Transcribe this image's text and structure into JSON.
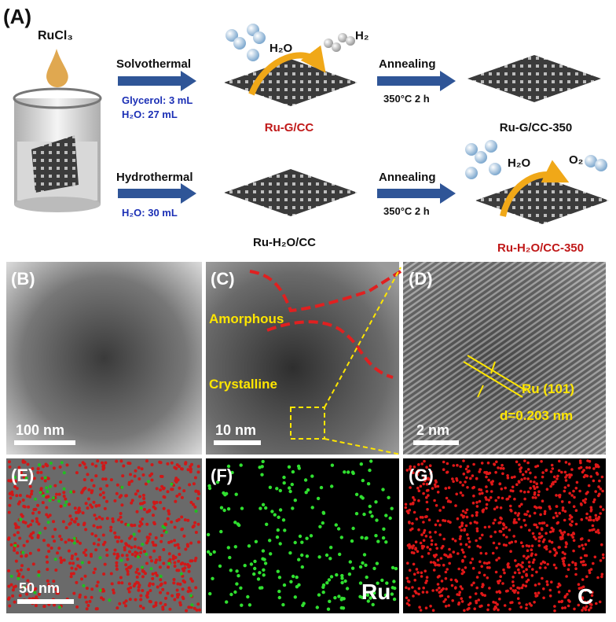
{
  "panel_a": {
    "label": "(A)",
    "precursor": "RuCl₃",
    "route_1": {
      "method": "Solvothermal",
      "conditions": [
        "Glycerol: 3 mL",
        "H₂O: 27 mL"
      ],
      "product": "Ru-G/CC",
      "gas_in": "H₂O",
      "gas_out": "H₂",
      "step": "Annealing",
      "step_conditions": "350°C 2 h",
      "final": "Ru-G/CC-350"
    },
    "route_2": {
      "method": "Hydrothermal",
      "conditions": [
        "H₂O: 30 mL"
      ],
      "product": "Ru-H₂O/CC",
      "step": "Annealing",
      "step_conditions": "350°C 2 h",
      "final": "Ru-H₂O/CC-350",
      "gas_in": "H₂O",
      "gas_out": "O₂"
    }
  },
  "panels": [
    {
      "label": "(B)",
      "scale_bar": "100 nm"
    },
    {
      "label": "(C)",
      "scale_bar": "10 nm",
      "annotations": [
        "Amorphous",
        "Crystalline"
      ]
    },
    {
      "label": "(D)",
      "scale_bar": "2 nm",
      "annotations": [
        "Ru (101)",
        "d=0.203 nm"
      ]
    },
    {
      "label": "(E)",
      "scale_bar": "50 nm"
    },
    {
      "label": "(F)",
      "element": "Ru"
    },
    {
      "label": "(G)",
      "element": "C"
    }
  ]
}
